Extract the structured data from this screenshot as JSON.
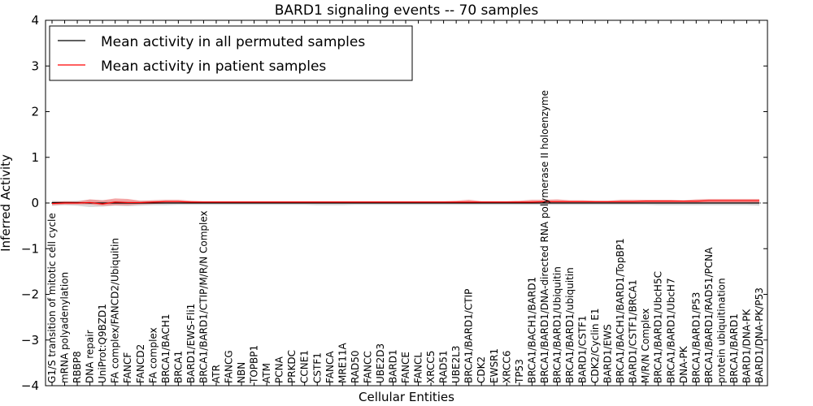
{
  "chart_data": {
    "type": "line",
    "title": "BARD1 signaling events -- 70 samples",
    "xlabel": "Cellular Entities",
    "ylabel": "Inferred Activity",
    "ylim": [
      -4,
      4
    ],
    "yticks": [
      -4,
      -3,
      -2,
      -1,
      0,
      1,
      2,
      3,
      4
    ],
    "ytick_labels": [
      "−4",
      "−3",
      "−2",
      "−1",
      "0",
      "1",
      "2",
      "3",
      "4"
    ],
    "legend_position": "top-left",
    "colors": {
      "permuted": "#000000",
      "patient": "#ff0000",
      "patient_band": "#f08080",
      "permuted_band": "#c8c8c8",
      "zero_line": "#000000"
    },
    "categories": [
      "G1/S transition of mitotic cell cycle",
      "mRNA polyadenylation",
      "RBBP8",
      "DNA repair",
      "UniProt:Q9BZD1",
      "FA complex/FANCD2/Ubiquitin",
      "FANCF",
      "FANCD2",
      "FA complex",
      "BRCA1/BACH1",
      "BRCA1",
      "BARD1/EWS-Fli1",
      "BRCA1/BARD1/CTIP/M/R/N Complex",
      "ATR",
      "FANCG",
      "NBN",
      "TOPBP1",
      "ATM",
      "PCNA",
      "PRKDC",
      "CCNE1",
      "CSTF1",
      "FANCA",
      "MRE11A",
      "RAD50",
      "FANCC",
      "UBE2D3",
      "BARD1",
      "FANCE",
      "FANCL",
      "XRCC5",
      "RAD51",
      "UBE2L3",
      "BRCA1/BARD1/CTIP",
      "CDK2",
      "EWSR1",
      "XRCC6",
      "TP53",
      "BRCA1/BACH1/BARD1",
      "BRCA1/BARD1/DNA-directed RNA polymerase II holoenzyme",
      "BRCA1/BARD1/Ubiquitin",
      "BRCA1/BARD1/ubiquitin",
      "BARD1/CSTF1",
      "CDK2/Cyclin E1",
      "BARD1/EWS",
      "BRCA1/BACH1/BARD1/TopBP1",
      "BARD1/CSTF1/BRCA1",
      "M/R/N Complex",
      "BRCA1/BARD1/UbcH5C",
      "BRCA1/BARD1/UbcH7",
      "DNA-PK",
      "BRCA1/BARD1/P53",
      "BRCA1/BARD1/RAD51/PCNA",
      "protein ubiquitination",
      "BRCA1/BARD1",
      "BARD1/DNA-PK",
      "BARD1/DNA-PK/P53"
    ],
    "series": [
      {
        "name": "Mean activity in all permuted samples",
        "color": "#000000",
        "values": [
          0.01,
          0.01,
          0.01,
          0.0,
          0.0,
          0.0,
          0.0,
          0.0,
          0.0,
          0.0,
          0.0,
          0.0,
          0.0,
          0.0,
          0.0,
          0.0,
          0.0,
          0.0,
          0.0,
          0.0,
          0.0,
          0.0,
          0.0,
          0.0,
          0.0,
          0.0,
          0.0,
          0.0,
          0.0,
          0.0,
          0.0,
          0.0,
          0.0,
          0.0,
          0.0,
          0.0,
          0.0,
          0.0,
          0.0,
          0.0,
          0.0,
          0.0,
          0.0,
          0.0,
          0.0,
          0.0,
          0.0,
          0.0,
          0.0,
          0.0,
          0.0,
          0.0,
          0.0,
          0.0,
          0.0,
          0.0,
          0.0
        ],
        "band_low": [
          -0.06,
          -0.05,
          -0.06,
          -0.09,
          -0.08,
          -0.06,
          -0.07,
          -0.06,
          -0.05,
          -0.05,
          -0.04,
          -0.04,
          -0.04,
          -0.04,
          -0.04,
          -0.04,
          -0.04,
          -0.04,
          -0.04,
          -0.04,
          -0.04,
          -0.05,
          -0.05,
          -0.05,
          -0.04,
          -0.04,
          -0.04,
          -0.04,
          -0.04,
          -0.04,
          -0.04,
          -0.04,
          -0.04,
          -0.04,
          -0.04,
          -0.04,
          -0.04,
          -0.04,
          -0.04,
          -0.04,
          -0.04,
          -0.04,
          -0.04,
          -0.04,
          -0.04,
          -0.04,
          -0.04,
          -0.04,
          -0.05,
          -0.05,
          -0.05,
          -0.05,
          -0.05,
          -0.05,
          -0.05,
          -0.05,
          -0.06
        ],
        "band_high": [
          0.05,
          0.04,
          0.05,
          0.07,
          0.06,
          0.05,
          0.05,
          0.05,
          0.04,
          0.04,
          0.04,
          0.04,
          0.03,
          0.03,
          0.03,
          0.03,
          0.03,
          0.03,
          0.03,
          0.03,
          0.03,
          0.03,
          0.03,
          0.03,
          0.03,
          0.03,
          0.03,
          0.03,
          0.03,
          0.03,
          0.03,
          0.03,
          0.03,
          0.03,
          0.03,
          0.03,
          0.03,
          0.03,
          0.03,
          0.03,
          0.03,
          0.03,
          0.03,
          0.03,
          0.03,
          0.03,
          0.03,
          0.03,
          0.03,
          0.03,
          0.03,
          0.03,
          0.03,
          0.03,
          0.03,
          0.03,
          0.03
        ]
      },
      {
        "name": "Mean activity in patient samples",
        "color": "#ff0000",
        "values": [
          -0.01,
          0.0,
          0.0,
          0.01,
          -0.02,
          0.02,
          0.01,
          0.01,
          0.02,
          0.03,
          0.03,
          0.02,
          0.02,
          0.02,
          0.02,
          0.02,
          0.02,
          0.02,
          0.02,
          0.02,
          0.02,
          0.02,
          0.02,
          0.02,
          0.02,
          0.02,
          0.02,
          0.02,
          0.02,
          0.02,
          0.02,
          0.02,
          0.02,
          0.02,
          0.02,
          0.02,
          0.02,
          0.02,
          0.02,
          0.03,
          0.03,
          0.03,
          0.03,
          0.03,
          0.03,
          0.03,
          0.03,
          0.04,
          0.04,
          0.04,
          0.04,
          0.04,
          0.05,
          0.05,
          0.05,
          0.05,
          0.05
        ],
        "band_low": [
          -0.05,
          -0.03,
          -0.03,
          -0.03,
          -0.06,
          -0.05,
          -0.05,
          -0.03,
          -0.02,
          -0.01,
          -0.01,
          -0.01,
          0.0,
          0.0,
          0.0,
          0.0,
          0.0,
          0.0,
          0.0,
          0.0,
          0.0,
          0.0,
          0.0,
          0.0,
          0.0,
          0.0,
          0.0,
          0.0,
          0.0,
          0.0,
          0.0,
          0.0,
          0.0,
          -0.01,
          0.0,
          0.0,
          0.0,
          0.0,
          -0.01,
          -0.01,
          -0.01,
          0.0,
          0.0,
          0.0,
          0.0,
          -0.01,
          -0.01,
          -0.01,
          -0.01,
          -0.01,
          0.0,
          0.0,
          0.0,
          0.0,
          0.0,
          0.0,
          0.0
        ],
        "band_high": [
          0.02,
          0.04,
          0.03,
          0.08,
          0.06,
          0.1,
          0.09,
          0.05,
          0.06,
          0.07,
          0.07,
          0.05,
          0.04,
          0.04,
          0.04,
          0.04,
          0.04,
          0.04,
          0.04,
          0.04,
          0.04,
          0.04,
          0.04,
          0.04,
          0.04,
          0.04,
          0.04,
          0.04,
          0.04,
          0.04,
          0.04,
          0.04,
          0.05,
          0.07,
          0.04,
          0.04,
          0.04,
          0.05,
          0.07,
          0.07,
          0.08,
          0.06,
          0.06,
          0.05,
          0.05,
          0.07,
          0.07,
          0.07,
          0.07,
          0.07,
          0.06,
          0.08,
          0.09,
          0.09,
          0.09,
          0.09,
          0.09
        ]
      }
    ]
  }
}
